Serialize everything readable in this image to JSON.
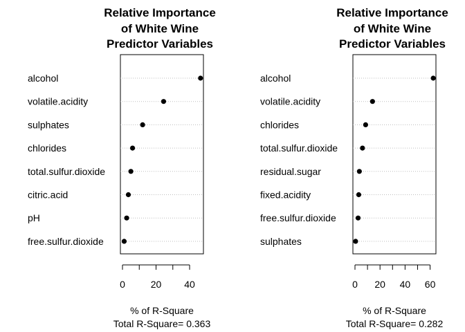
{
  "chart_data": [
    {
      "type": "dotplot",
      "title_lines": [
        "Relative Importance",
        "of White Wine",
        "Predictor Variables"
      ],
      "categories": [
        "alcohol",
        "volatile.acidity",
        "sulphates",
        "chlorides",
        "total.sulfur.dioxide",
        "citric.acid",
        "pH",
        "free.sulfur.dioxide"
      ],
      "values": [
        46.5,
        24.5,
        12,
        6,
        5,
        3.5,
        2.5,
        1
      ],
      "xlim": [
        0,
        47
      ],
      "ticks": [
        0,
        20,
        40
      ],
      "minor_ticks": [
        10,
        30
      ],
      "xlabel": "% of R-Square",
      "note": "Total R-Square= 0.363",
      "grid": "dotted horizontal guides",
      "marker_color": "#000000"
    },
    {
      "type": "dotplot",
      "title_lines": [
        "Relative Importance",
        "of White Wine",
        "Predictor Variables"
      ],
      "categories": [
        "alcohol",
        "volatile.acidity",
        "chlorides",
        "total.sulfur.dioxide",
        "residual.sugar",
        "fixed.acidity",
        "free.sulfur.dioxide",
        "sulphates"
      ],
      "values": [
        62.5,
        14,
        8.5,
        6,
        3.5,
        3,
        2.5,
        0.5
      ],
      "xlim": [
        0,
        63
      ],
      "ticks": [
        0,
        20,
        40,
        60
      ],
      "minor_ticks": [
        10,
        30,
        50
      ],
      "xlabel": "% of R-Square",
      "note": "Total R-Square= 0.282",
      "grid": "dotted horizontal guides",
      "marker_color": "#000000"
    }
  ]
}
